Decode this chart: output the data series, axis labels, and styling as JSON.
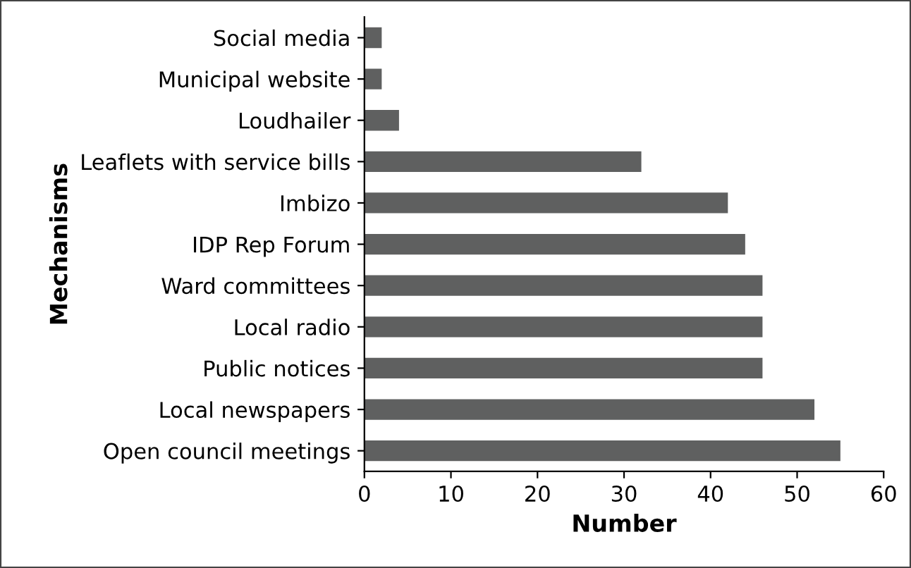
{
  "chart_data": {
    "type": "bar",
    "orientation": "horizontal",
    "xlabel": "Number",
    "ylabel": "Mechanisms",
    "categories": [
      "Social media",
      "Municipal website",
      "Loudhailer",
      "Leaflets with service bills",
      "Imbizo",
      "IDP Rep Forum",
      "Ward committees",
      "Local radio",
      "Public notices",
      "Local newspapers",
      "Open council meetings"
    ],
    "values": [
      2,
      2,
      4,
      32,
      42,
      44,
      46,
      46,
      46,
      52,
      55
    ],
    "color": "#5f6060",
    "xlim": [
      0,
      60
    ],
    "xticks": [
      0,
      10,
      20,
      30,
      40,
      50,
      60
    ],
    "grid": false,
    "legend": false
  }
}
